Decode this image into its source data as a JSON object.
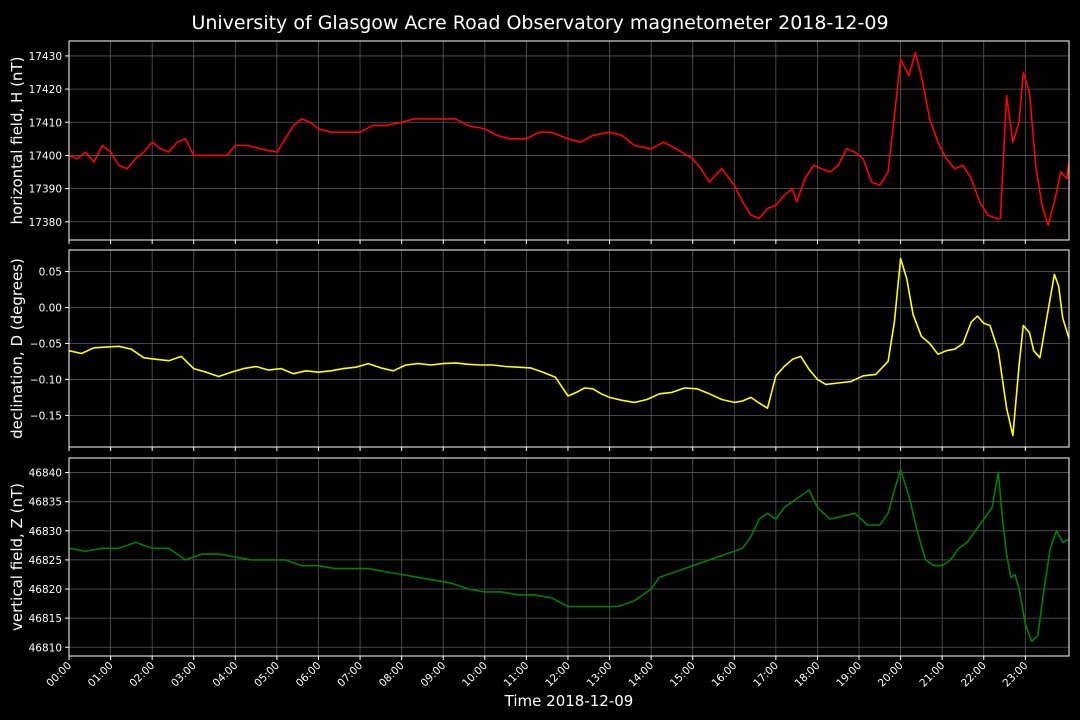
{
  "chart_data": {
    "type": "line",
    "title": "University of Glasgow Acre Road Observatory magnetometer 2018-12-09",
    "xlabel": "Time 2018-12-09",
    "x_ticks": [
      "00:00",
      "01:00",
      "02:00",
      "03:00",
      "04:00",
      "05:00",
      "06:00",
      "07:00",
      "08:00",
      "09:00",
      "10:00",
      "11:00",
      "12:00",
      "13:00",
      "14:00",
      "15:00",
      "16:00",
      "17:00",
      "18:00",
      "19:00",
      "20:00",
      "21:00",
      "22:00",
      "23:00"
    ],
    "xlim_hours": [
      0,
      24.05
    ],
    "grid": true,
    "background": "#000000",
    "panels": [
      {
        "name": "horizontal",
        "ylabel": "horizontal field, H (nT)",
        "color": "#ff0000",
        "ylim": [
          17374.5,
          17434.5
        ],
        "y_ticks": [
          17380,
          17390,
          17400,
          17410,
          17420,
          17430
        ],
        "y_tick_labels": [
          "17380",
          "17390",
          "17400",
          "17410",
          "17420",
          "17430"
        ],
        "series": [
          [
            0.0,
            17400
          ],
          [
            0.2,
            17399
          ],
          [
            0.4,
            17401
          ],
          [
            0.6,
            17398
          ],
          [
            0.8,
            17403
          ],
          [
            1.0,
            17401
          ],
          [
            1.2,
            17397
          ],
          [
            1.4,
            17396
          ],
          [
            1.6,
            17399
          ],
          [
            1.8,
            17401
          ],
          [
            2.0,
            17404
          ],
          [
            2.2,
            17402
          ],
          [
            2.4,
            17401
          ],
          [
            2.6,
            17404
          ],
          [
            2.8,
            17405
          ],
          [
            3.0,
            17400
          ],
          [
            3.2,
            17400
          ],
          [
            3.4,
            17400
          ],
          [
            3.6,
            17400
          ],
          [
            3.8,
            17400
          ],
          [
            4.0,
            17403
          ],
          [
            4.3,
            17403
          ],
          [
            4.6,
            17402
          ],
          [
            5.0,
            17401
          ],
          [
            5.2,
            17405
          ],
          [
            5.4,
            17409
          ],
          [
            5.6,
            17411
          ],
          [
            5.8,
            17410
          ],
          [
            6.0,
            17408
          ],
          [
            6.3,
            17407
          ],
          [
            6.6,
            17407
          ],
          [
            7.0,
            17407
          ],
          [
            7.3,
            17409
          ],
          [
            7.6,
            17409
          ],
          [
            8.0,
            17410
          ],
          [
            8.3,
            17411
          ],
          [
            8.6,
            17411
          ],
          [
            9.0,
            17411
          ],
          [
            9.3,
            17411
          ],
          [
            9.6,
            17409
          ],
          [
            10.0,
            17408
          ],
          [
            10.3,
            17406
          ],
          [
            10.6,
            17405
          ],
          [
            11.0,
            17405
          ],
          [
            11.3,
            17407
          ],
          [
            11.6,
            17407
          ],
          [
            12.0,
            17405
          ],
          [
            12.3,
            17404
          ],
          [
            12.6,
            17406
          ],
          [
            13.0,
            17407
          ],
          [
            13.3,
            17406
          ],
          [
            13.6,
            17403
          ],
          [
            14.0,
            17402
          ],
          [
            14.3,
            17404
          ],
          [
            14.6,
            17402
          ],
          [
            15.0,
            17399
          ],
          [
            15.2,
            17396
          ],
          [
            15.4,
            17392
          ],
          [
            15.7,
            17396
          ],
          [
            16.0,
            17391
          ],
          [
            16.2,
            17386
          ],
          [
            16.4,
            17382
          ],
          [
            16.6,
            17381
          ],
          [
            16.8,
            17384
          ],
          [
            17.0,
            17385
          ],
          [
            17.2,
            17388
          ],
          [
            17.4,
            17390
          ],
          [
            17.5,
            17386
          ],
          [
            17.7,
            17393
          ],
          [
            17.9,
            17397
          ],
          [
            18.1,
            17396
          ],
          [
            18.3,
            17395
          ],
          [
            18.5,
            17397
          ],
          [
            18.7,
            17402
          ],
          [
            18.9,
            17401
          ],
          [
            19.1,
            17399
          ],
          [
            19.3,
            17392
          ],
          [
            19.5,
            17391
          ],
          [
            19.7,
            17395
          ],
          [
            19.85,
            17412
          ],
          [
            20.0,
            17429
          ],
          [
            20.2,
            17424
          ],
          [
            20.35,
            17431
          ],
          [
            20.5,
            17424
          ],
          [
            20.7,
            17411
          ],
          [
            20.9,
            17404
          ],
          [
            21.1,
            17399
          ],
          [
            21.3,
            17396
          ],
          [
            21.5,
            17397
          ],
          [
            21.7,
            17393
          ],
          [
            21.9,
            17386
          ],
          [
            22.1,
            17382
          ],
          [
            22.3,
            17381
          ],
          [
            22.4,
            17381
          ],
          [
            22.55,
            17418
          ],
          [
            22.7,
            17404
          ],
          [
            22.85,
            17410
          ],
          [
            22.95,
            17425
          ],
          [
            23.1,
            17419
          ],
          [
            23.25,
            17397
          ],
          [
            23.4,
            17385
          ],
          [
            23.55,
            17379
          ],
          [
            23.7,
            17386
          ],
          [
            23.85,
            17395
          ],
          [
            24.0,
            17393
          ],
          [
            24.05,
            17398
          ]
        ]
      },
      {
        "name": "declination",
        "ylabel": "declination, D (degrees)",
        "color": "#ffff00",
        "ylim": [
          -0.194,
          0.08
        ],
        "y_ticks": [
          -0.15,
          -0.1,
          -0.05,
          0.0,
          0.05
        ],
        "y_tick_labels": [
          "−0.15",
          "−0.10",
          "−0.05",
          "0.00",
          "0.05"
        ],
        "series": [
          [
            0.0,
            -0.06
          ],
          [
            0.3,
            -0.064
          ],
          [
            0.6,
            -0.056
          ],
          [
            0.9,
            -0.055
          ],
          [
            1.2,
            -0.054
          ],
          [
            1.5,
            -0.058
          ],
          [
            1.8,
            -0.07
          ],
          [
            2.1,
            -0.072
          ],
          [
            2.4,
            -0.074
          ],
          [
            2.7,
            -0.068
          ],
          [
            3.0,
            -0.085
          ],
          [
            3.3,
            -0.09
          ],
          [
            3.6,
            -0.096
          ],
          [
            3.9,
            -0.09
          ],
          [
            4.2,
            -0.085
          ],
          [
            4.5,
            -0.082
          ],
          [
            4.8,
            -0.087
          ],
          [
            5.1,
            -0.085
          ],
          [
            5.4,
            -0.092
          ],
          [
            5.7,
            -0.088
          ],
          [
            6.0,
            -0.09
          ],
          [
            6.3,
            -0.088
          ],
          [
            6.6,
            -0.085
          ],
          [
            6.9,
            -0.083
          ],
          [
            7.2,
            -0.078
          ],
          [
            7.5,
            -0.084
          ],
          [
            7.8,
            -0.088
          ],
          [
            8.1,
            -0.08
          ],
          [
            8.4,
            -0.078
          ],
          [
            8.7,
            -0.08
          ],
          [
            9.0,
            -0.078
          ],
          [
            9.3,
            -0.077
          ],
          [
            9.6,
            -0.079
          ],
          [
            9.9,
            -0.08
          ],
          [
            10.2,
            -0.08
          ],
          [
            10.5,
            -0.082
          ],
          [
            10.8,
            -0.083
          ],
          [
            11.1,
            -0.084
          ],
          [
            11.4,
            -0.09
          ],
          [
            11.7,
            -0.097
          ],
          [
            12.0,
            -0.123
          ],
          [
            12.2,
            -0.118
          ],
          [
            12.4,
            -0.112
          ],
          [
            12.6,
            -0.113
          ],
          [
            12.8,
            -0.12
          ],
          [
            13.0,
            -0.125
          ],
          [
            13.3,
            -0.129
          ],
          [
            13.6,
            -0.132
          ],
          [
            13.9,
            -0.128
          ],
          [
            14.2,
            -0.12
          ],
          [
            14.5,
            -0.118
          ],
          [
            14.8,
            -0.112
          ],
          [
            15.1,
            -0.113
          ],
          [
            15.4,
            -0.12
          ],
          [
            15.7,
            -0.128
          ],
          [
            16.0,
            -0.132
          ],
          [
            16.2,
            -0.13
          ],
          [
            16.4,
            -0.125
          ],
          [
            16.6,
            -0.133
          ],
          [
            16.8,
            -0.14
          ],
          [
            17.0,
            -0.095
          ],
          [
            17.2,
            -0.082
          ],
          [
            17.4,
            -0.072
          ],
          [
            17.6,
            -0.068
          ],
          [
            17.8,
            -0.086
          ],
          [
            18.0,
            -0.1
          ],
          [
            18.2,
            -0.107
          ],
          [
            18.5,
            -0.105
          ],
          [
            18.8,
            -0.103
          ],
          [
            19.1,
            -0.095
          ],
          [
            19.4,
            -0.093
          ],
          [
            19.7,
            -0.075
          ],
          [
            19.85,
            -0.02
          ],
          [
            20.0,
            0.068
          ],
          [
            20.15,
            0.04
          ],
          [
            20.3,
            -0.01
          ],
          [
            20.5,
            -0.04
          ],
          [
            20.7,
            -0.05
          ],
          [
            20.9,
            -0.065
          ],
          [
            21.1,
            -0.06
          ],
          [
            21.3,
            -0.058
          ],
          [
            21.5,
            -0.05
          ],
          [
            21.7,
            -0.02
          ],
          [
            21.85,
            -0.012
          ],
          [
            22.0,
            -0.022
          ],
          [
            22.15,
            -0.025
          ],
          [
            22.35,
            -0.06
          ],
          [
            22.55,
            -0.14
          ],
          [
            22.7,
            -0.178
          ],
          [
            22.85,
            -0.08
          ],
          [
            22.95,
            -0.025
          ],
          [
            23.1,
            -0.035
          ],
          [
            23.2,
            -0.06
          ],
          [
            23.35,
            -0.07
          ],
          [
            23.5,
            -0.02
          ],
          [
            23.7,
            0.046
          ],
          [
            23.8,
            0.03
          ],
          [
            23.9,
            -0.015
          ],
          [
            24.05,
            -0.043
          ]
        ]
      },
      {
        "name": "vertical",
        "ylabel": "vertical field, Z (nT)",
        "color": "#008000",
        "ylim": [
          46808.5,
          46842.5
        ],
        "y_ticks": [
          46810,
          46815,
          46820,
          46825,
          46830,
          46835,
          46840
        ],
        "y_tick_labels": [
          "46810",
          "46815",
          "46820",
          "46825",
          "46830",
          "46835",
          "46840"
        ],
        "series": [
          [
            0.0,
            46827
          ],
          [
            0.4,
            46826.5
          ],
          [
            0.8,
            46827
          ],
          [
            1.2,
            46827
          ],
          [
            1.6,
            46828
          ],
          [
            2.0,
            46827
          ],
          [
            2.4,
            46827
          ],
          [
            2.8,
            46825
          ],
          [
            3.2,
            46826
          ],
          [
            3.6,
            46826
          ],
          [
            4.0,
            46825.5
          ],
          [
            4.4,
            46825
          ],
          [
            4.8,
            46825
          ],
          [
            5.2,
            46825
          ],
          [
            5.6,
            46824
          ],
          [
            6.0,
            46824
          ],
          [
            6.4,
            46823.5
          ],
          [
            6.8,
            46823.5
          ],
          [
            7.2,
            46823.5
          ],
          [
            7.6,
            46823
          ],
          [
            8.0,
            46822.5
          ],
          [
            8.4,
            46822
          ],
          [
            8.8,
            46821.5
          ],
          [
            9.2,
            46821
          ],
          [
            9.6,
            46820
          ],
          [
            10.0,
            46819.5
          ],
          [
            10.4,
            46819.5
          ],
          [
            10.8,
            46819
          ],
          [
            11.2,
            46819
          ],
          [
            11.6,
            46818.5
          ],
          [
            12.0,
            46817
          ],
          [
            12.4,
            46817
          ],
          [
            12.8,
            46817
          ],
          [
            13.2,
            46817
          ],
          [
            13.6,
            46818
          ],
          [
            14.0,
            46820
          ],
          [
            14.2,
            46822
          ],
          [
            14.6,
            46823
          ],
          [
            15.0,
            46824
          ],
          [
            15.4,
            46825
          ],
          [
            15.8,
            46826
          ],
          [
            16.2,
            46827
          ],
          [
            16.4,
            46829
          ],
          [
            16.6,
            46832
          ],
          [
            16.8,
            46833
          ],
          [
            17.0,
            46832
          ],
          [
            17.2,
            46834
          ],
          [
            17.4,
            46835
          ],
          [
            17.6,
            46836
          ],
          [
            17.8,
            46837
          ],
          [
            18.0,
            46834
          ],
          [
            18.3,
            46832
          ],
          [
            18.6,
            46832.5
          ],
          [
            18.9,
            46833
          ],
          [
            19.2,
            46831
          ],
          [
            19.5,
            46831
          ],
          [
            19.7,
            46833
          ],
          [
            19.85,
            46837
          ],
          [
            20.0,
            46840.5
          ],
          [
            20.2,
            46836
          ],
          [
            20.4,
            46830
          ],
          [
            20.6,
            46825
          ],
          [
            20.8,
            46824
          ],
          [
            21.0,
            46824
          ],
          [
            21.2,
            46825
          ],
          [
            21.4,
            46827
          ],
          [
            21.6,
            46828
          ],
          [
            21.8,
            46830
          ],
          [
            22.0,
            46832
          ],
          [
            22.2,
            46834
          ],
          [
            22.35,
            46840
          ],
          [
            22.45,
            46832
          ],
          [
            22.55,
            46826
          ],
          [
            22.65,
            46822
          ],
          [
            22.75,
            46822.5
          ],
          [
            22.85,
            46820
          ],
          [
            23.0,
            46814
          ],
          [
            23.15,
            46811
          ],
          [
            23.3,
            46812
          ],
          [
            23.45,
            46820
          ],
          [
            23.6,
            46827
          ],
          [
            23.75,
            46830
          ],
          [
            23.9,
            46828
          ],
          [
            24.05,
            46828.5
          ]
        ]
      }
    ]
  }
}
